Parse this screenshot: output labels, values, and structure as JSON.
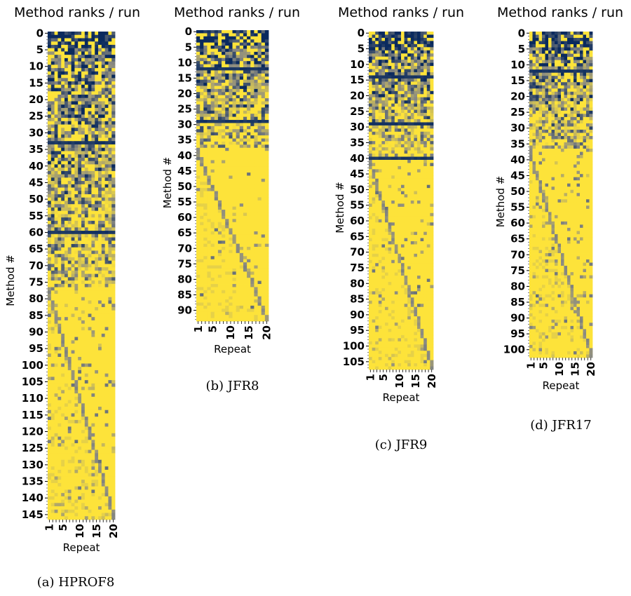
{
  "colors": {
    "low": "#0a2a5e",
    "mid": "#8a8a82",
    "high": "#fde33a"
  },
  "chart_data": [
    {
      "type": "heatmap",
      "title": "Method ranks / run",
      "caption": "(a) HPROF8",
      "xlabel": "Repeat",
      "ylabel": "Method #",
      "x_ticks": [
        "1",
        "5",
        "10",
        "15",
        "20"
      ],
      "y_ticks": [
        "0",
        "5",
        "10",
        "15",
        "20",
        "25",
        "30",
        "35",
        "40",
        "45",
        "50",
        "55",
        "60",
        "65",
        "70",
        "75",
        "80",
        "85",
        "90",
        "95",
        "100",
        "105",
        "110",
        "115",
        "120",
        "125",
        "130",
        "135",
        "140",
        "145"
      ],
      "repeats": 20,
      "methods": 147,
      "ordered_until": 77,
      "dark_rows": [
        33,
        60
      ],
      "noise": 0.1
    },
    {
      "type": "heatmap",
      "title": "Method ranks / run",
      "caption": "(b) JFR8",
      "xlabel": "Repeat",
      "ylabel": "Method #",
      "x_ticks": [
        "1",
        "5",
        "10",
        "15",
        "20"
      ],
      "y_ticks": [
        "0",
        "5",
        "10",
        "15",
        "20",
        "25",
        "30",
        "35",
        "40",
        "45",
        "50",
        "55",
        "60",
        "65",
        "70",
        "75",
        "80",
        "85",
        "90"
      ],
      "repeats": 20,
      "methods": 94,
      "ordered_until": 38,
      "dark_rows": [
        12,
        29
      ],
      "noise": 0.06
    },
    {
      "type": "heatmap",
      "title": "Method ranks / run",
      "caption": "(c) JFR9",
      "xlabel": "Repeat",
      "ylabel": "Method #",
      "x_ticks": [
        "1",
        "5",
        "10",
        "15",
        "20"
      ],
      "y_ticks": [
        "0",
        "5",
        "10",
        "15",
        "20",
        "25",
        "30",
        "35",
        "40",
        "45",
        "50",
        "55",
        "60",
        "65",
        "70",
        "75",
        "80",
        "85",
        "90",
        "95",
        "100",
        "105"
      ],
      "repeats": 20,
      "methods": 108,
      "ordered_until": 40,
      "dark_rows": [
        14,
        29,
        40
      ],
      "noise": 0.08
    },
    {
      "type": "heatmap",
      "title": "Method ranks / run",
      "caption": "(d) JFR17",
      "xlabel": "Repeat",
      "ylabel": "Method #",
      "x_ticks": [
        "1",
        "5",
        "10",
        "15",
        "20"
      ],
      "y_ticks": [
        "0",
        "5",
        "10",
        "15",
        "20",
        "25",
        "30",
        "35",
        "40",
        "45",
        "50",
        "55",
        "60",
        "65",
        "70",
        "75",
        "80",
        "85",
        "90",
        "95",
        "100"
      ],
      "repeats": 20,
      "methods": 103,
      "ordered_until": 37,
      "dark_rows": [
        12
      ],
      "noise": 0.1
    }
  ]
}
